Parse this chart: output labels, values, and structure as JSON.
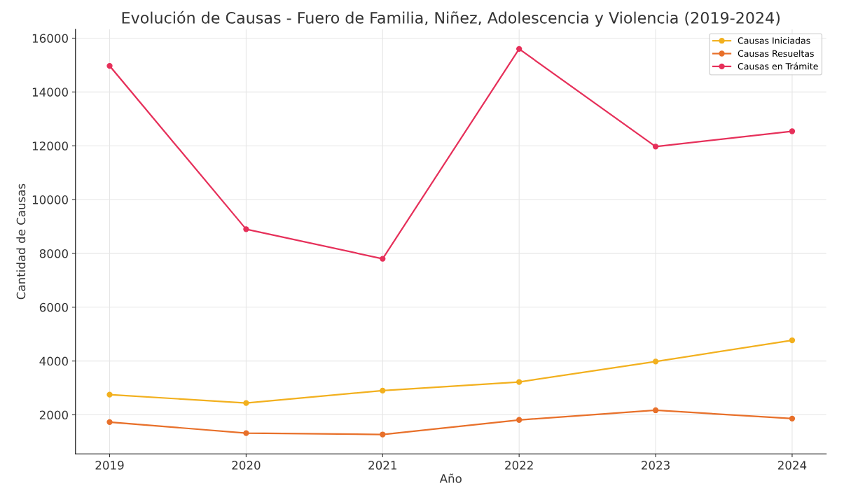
{
  "chart_data": {
    "type": "line",
    "title": "Evolución de Causas - Fuero de Familia, Niñez, Adolescencia y Violencia (2019-2024)",
    "xlabel": "Año",
    "ylabel": "Cantidad de Causas",
    "x": [
      2019,
      2020,
      2021,
      2022,
      2023,
      2024
    ],
    "series": [
      {
        "name": "Causas Iniciadas",
        "color": "#f2b01e",
        "values": [
          2750,
          2440,
          2900,
          3220,
          3980,
          4770
        ]
      },
      {
        "name": "Causas Resueltas",
        "color": "#e8702a",
        "values": [
          1730,
          1320,
          1270,
          1810,
          2170,
          1860
        ]
      },
      {
        "name": "Causas en Trámite",
        "color": "#e6305a",
        "values": [
          14970,
          8900,
          7800,
          15600,
          11970,
          12540
        ]
      }
    ],
    "xlim": [
      2018.75,
      2024.25
    ],
    "xticks": [
      2019,
      2020,
      2021,
      2022,
      2023,
      2024
    ],
    "ylim": [
      550,
      16330
    ],
    "yticks": [
      2000,
      4000,
      6000,
      8000,
      10000,
      12000,
      14000,
      16000
    ],
    "grid": true,
    "legend": "top right",
    "marker": "circle",
    "line_style": "solid"
  }
}
